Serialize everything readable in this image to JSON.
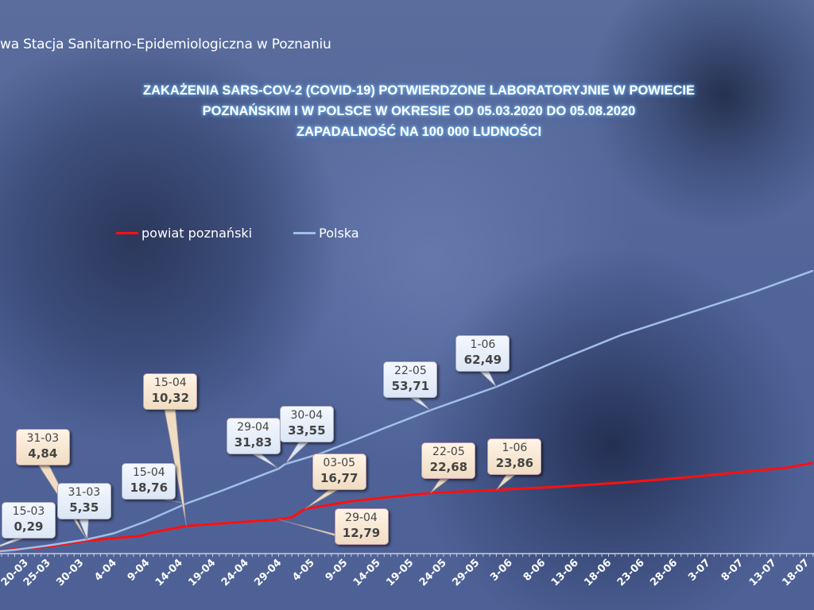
{
  "header": {
    "organization": "wa Stacja Sanitarno-Epidemiologiczna w Poznaniu"
  },
  "chart_data": {
    "type": "line",
    "title": [
      "ZAKAŻENIA SARS-COV-2 (COVID-19) POTWIERDZONE LABORATORYJNIE W POWIECIE",
      "POZNAŃSKIM I W POLSCE W OKRESIE OD 05.03.2020 DO 05.08.2020",
      "ZAPADALNOŚĆ NA 100 000 LUDNOŚCI"
    ],
    "legend": [
      "powiat poznański",
      "Polska"
    ],
    "legend_placement": "top-left",
    "colors": {
      "powiat poznański": "#ff1010",
      "Polska": "#9ec0e8"
    },
    "x_tick_labels": [
      "20-03",
      "25-03",
      "30-03",
      "4-04",
      "9-04",
      "14-04",
      "19-04",
      "24-04",
      "29-04",
      "4-05",
      "9-05",
      "14-05",
      "19-05",
      "24-05",
      "29-05",
      "3-06",
      "8-06",
      "13-06",
      "18-06",
      "23-06",
      "28-06",
      "3-07",
      "8-07",
      "13-07",
      "18-07"
    ],
    "series": [
      {
        "name": "powiat poznański",
        "points": [
          [
            "05-03",
            0
          ],
          [
            "15-03",
            0.6
          ],
          [
            "25-03",
            2.6
          ],
          [
            "31-03",
            4.84
          ],
          [
            "08-04",
            6.6
          ],
          [
            "10-04",
            8.0
          ],
          [
            "15-04",
            10.32
          ],
          [
            "22-04",
            11.6
          ],
          [
            "29-04",
            12.79
          ],
          [
            "01-05",
            13.6
          ],
          [
            "03-05",
            16.77
          ],
          [
            "10-05",
            19.6
          ],
          [
            "15-05",
            21.0
          ],
          [
            "22-05",
            22.68
          ],
          [
            "01-06",
            23.86
          ],
          [
            "10-06",
            25.0
          ],
          [
            "20-06",
            26.6
          ],
          [
            "30-06",
            28.6
          ],
          [
            "10-07",
            31.0
          ],
          [
            "15-07",
            32.2
          ],
          [
            "19-07",
            34.0
          ]
        ]
      },
      {
        "name": "Polska",
        "points": [
          [
            "05-03",
            0
          ],
          [
            "15-03",
            0.29
          ],
          [
            "20-03",
            1.4
          ],
          [
            "25-03",
            3.0
          ],
          [
            "31-03",
            5.35
          ],
          [
            "04-04",
            7.6
          ],
          [
            "09-04",
            12.2
          ],
          [
            "15-04",
            18.76
          ],
          [
            "20-04",
            23.2
          ],
          [
            "25-04",
            28.0
          ],
          [
            "29-04",
            31.83
          ],
          [
            "30-04",
            33.55
          ],
          [
            "05-05",
            37.2
          ],
          [
            "10-05",
            42.0
          ],
          [
            "15-05",
            47.0
          ],
          [
            "22-05",
            53.71
          ],
          [
            "01-06",
            62.49
          ],
          [
            "10-06",
            72.0
          ],
          [
            "20-06",
            82.0
          ],
          [
            "30-06",
            90.0
          ],
          [
            "10-07",
            98.0
          ],
          [
            "19-07",
            106.0
          ]
        ]
      }
    ],
    "annotations": [
      {
        "series": "Polska",
        "date": "15-03",
        "value": "0,29"
      },
      {
        "series": "Polska",
        "date": "31-03",
        "value": "5,35"
      },
      {
        "series": "Polska",
        "date": "15-04",
        "value": "18,76"
      },
      {
        "series": "Polska",
        "date": "29-04",
        "value": "31,83"
      },
      {
        "series": "Polska",
        "date": "30-04",
        "value": "33,55"
      },
      {
        "series": "Polska",
        "date": "22-05",
        "value": "53,71"
      },
      {
        "series": "Polska",
        "date": "1-06",
        "value": "62,49"
      },
      {
        "series": "powiat poznański",
        "date": "31-03",
        "value": "4,84"
      },
      {
        "series": "powiat poznański",
        "date": "15-04",
        "value": "10,32"
      },
      {
        "series": "powiat poznański",
        "date": "29-04",
        "value": "12,79"
      },
      {
        "series": "powiat poznański",
        "date": "03-05",
        "value": "16,77"
      },
      {
        "series": "powiat poznański",
        "date": "22-05",
        "value": "22,68"
      },
      {
        "series": "powiat poznański",
        "date": "1-06",
        "value": "23,86"
      }
    ]
  }
}
